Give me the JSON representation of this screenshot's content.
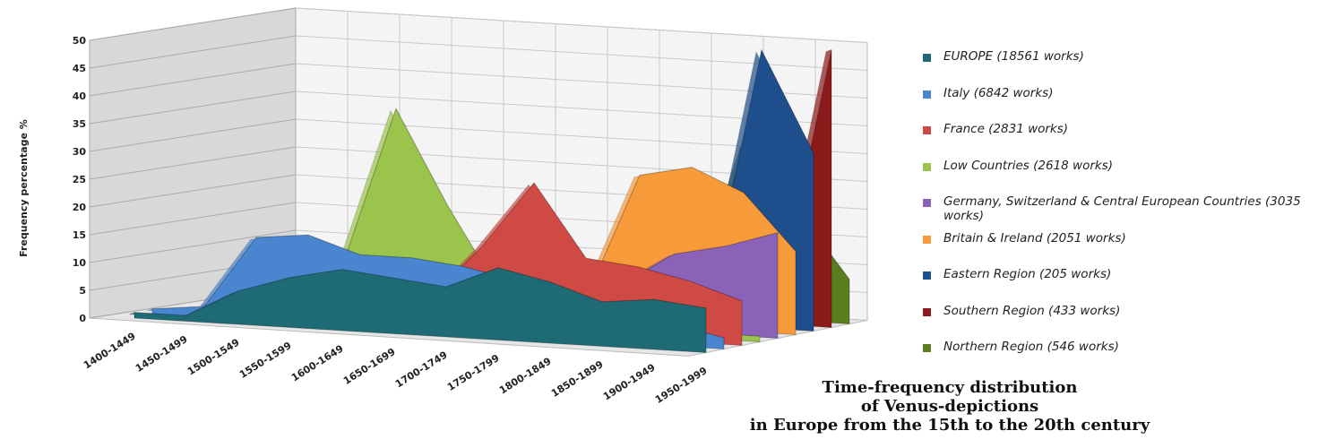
{
  "chart_data": {
    "type": "area3d",
    "title": "Time-frequency distribution\nof Venus-depictions\nin Europe from the 15th to the 20th century",
    "y_label": "Frequency percentage %",
    "categories": [
      "1400-1449",
      "1450-1499",
      "1500-1549",
      "1550-1599",
      "1600-1649",
      "1650-1699",
      "1700-1749",
      "1750-1799",
      "1800-1849",
      "1850-1899",
      "1900-1949",
      "1950-1999"
    ],
    "ylim": [
      0,
      50
    ],
    "yticks": [
      0,
      5,
      10,
      15,
      20,
      25,
      30,
      35,
      40,
      45,
      50
    ],
    "grid": true,
    "series": [
      {
        "name": "EUROPE (18561 works)",
        "color": "#1f6b75",
        "values": [
          1,
          1,
          6,
          9,
          11,
          10,
          9,
          13,
          11,
          8,
          9,
          8
        ]
      },
      {
        "name": "Italy (6842 works)",
        "color": "#4a86d0",
        "values": [
          1,
          2,
          15,
          16,
          13,
          13,
          12,
          10,
          9,
          6,
          4,
          2
        ]
      },
      {
        "name": "France (2831 works)",
        "color": "#d04a45",
        "values": [
          0,
          1,
          1,
          2,
          3,
          5,
          15,
          27,
          14,
          13,
          11,
          8
        ]
      },
      {
        "name": "Low Countries (2618 works)",
        "color": "#9bc44c",
        "values": [
          0,
          0,
          2,
          10,
          38,
          21,
          6,
          3,
          2,
          2,
          1,
          1
        ]
      },
      {
        "name": "Germany, Switzerland & Central European Countries (3035 works)",
        "color": "#8a63b8",
        "values": [
          0,
          0,
          1,
          2,
          3,
          4,
          4,
          5,
          8,
          14,
          16,
          19
        ]
      },
      {
        "name": "Britain & Ireland (2051 works)",
        "color": "#f79a3a",
        "values": [
          0,
          0,
          0,
          0,
          0,
          1,
          3,
          5,
          27,
          29,
          25,
          15
        ]
      },
      {
        "name": "Eastern Region (205 works)",
        "color": "#1f4e8c",
        "values": [
          0,
          0,
          0,
          0,
          0,
          0,
          0,
          0,
          0,
          5,
          50,
          32
        ]
      },
      {
        "name": "Southern Region (433 works)",
        "color": "#8b1a1a",
        "values": [
          0,
          0,
          0,
          0,
          0,
          0,
          0,
          0,
          0,
          0,
          5,
          50
        ]
      },
      {
        "name": "Northern Region (546 works)",
        "color": "#5a7d1e",
        "values": [
          0,
          0,
          0,
          0,
          0,
          0,
          0,
          0,
          2,
          31,
          20,
          8
        ]
      }
    ]
  }
}
